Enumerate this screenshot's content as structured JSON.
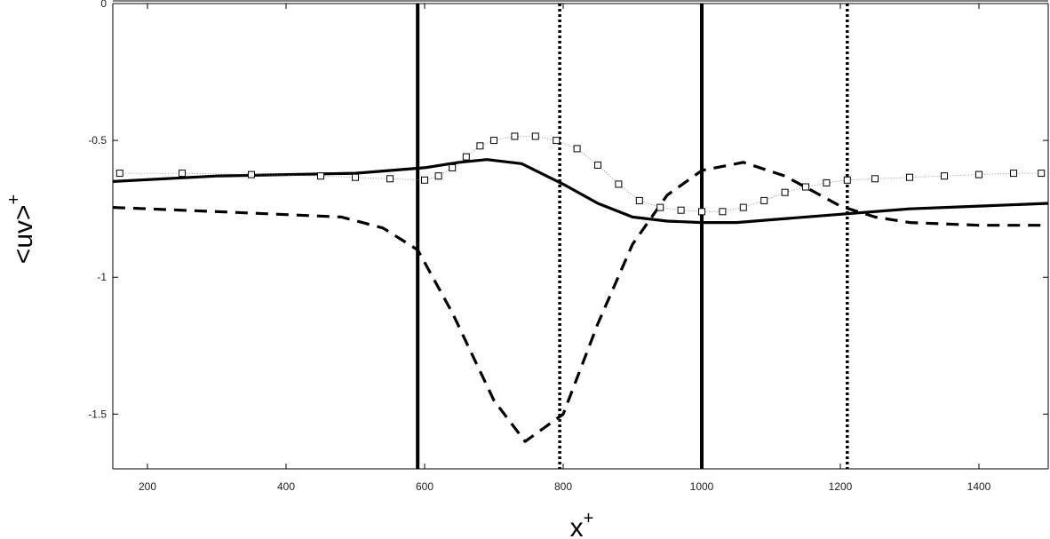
{
  "chart_data": {
    "type": "line",
    "xlabel": "x",
    "xlabel_sup": "+",
    "ylabel": "<uv>",
    "ylabel_sup": "+",
    "xlim": [
      150,
      1500
    ],
    "ylim": [
      -1.7,
      0
    ],
    "x_ticks": [
      200,
      400,
      600,
      800,
      1000,
      1200,
      1400
    ],
    "y_ticks": [
      0,
      -0.5,
      -1,
      -1.5
    ],
    "x_tick_labels": [
      "200",
      "400",
      "600",
      "800",
      "1000",
      "1200",
      "1400"
    ],
    "y_tick_labels": [
      "0",
      "-0.5",
      "-1",
      "-1.5"
    ],
    "grid": false,
    "vertical_lines": [
      {
        "x": 590,
        "style": "solid"
      },
      {
        "x": 795,
        "style": "dotted"
      },
      {
        "x": 1000,
        "style": "solid"
      },
      {
        "x": 1210,
        "style": "dotted"
      }
    ],
    "series": [
      {
        "style": "solid",
        "color": "#000000",
        "x": [
          150,
          300,
          500,
          600,
          650,
          690,
          740,
          800,
          850,
          900,
          950,
          1000,
          1050,
          1100,
          1200,
          1300,
          1400,
          1500
        ],
        "y": [
          -0.65,
          -0.63,
          -0.62,
          -0.6,
          -0.58,
          -0.57,
          -0.585,
          -0.66,
          -0.73,
          -0.78,
          -0.795,
          -0.8,
          -0.8,
          -0.79,
          -0.77,
          -0.75,
          -0.74,
          -0.73
        ]
      },
      {
        "style": "dashed",
        "color": "#000000",
        "x": [
          150,
          300,
          480,
          540,
          590,
          640,
          700,
          745,
          800,
          850,
          900,
          950,
          1000,
          1060,
          1120,
          1200,
          1250,
          1300,
          1400,
          1500
        ],
        "y": [
          -0.745,
          -0.76,
          -0.78,
          -0.82,
          -0.9,
          -1.13,
          -1.45,
          -1.6,
          -1.5,
          -1.17,
          -0.88,
          -0.7,
          -0.61,
          -0.58,
          -0.63,
          -0.74,
          -0.78,
          -0.8,
          -0.81,
          -0.81
        ]
      },
      {
        "style": "square-markers",
        "color": "#000000",
        "x": [
          160,
          250,
          350,
          450,
          500,
          550,
          600,
          620,
          640,
          660,
          680,
          700,
          730,
          760,
          790,
          820,
          850,
          880,
          910,
          940,
          970,
          1000,
          1030,
          1060,
          1090,
          1120,
          1150,
          1180,
          1210,
          1250,
          1300,
          1350,
          1400,
          1450,
          1490
        ],
        "y": [
          -0.62,
          -0.62,
          -0.625,
          -0.63,
          -0.635,
          -0.64,
          -0.645,
          -0.63,
          -0.6,
          -0.56,
          -0.52,
          -0.5,
          -0.485,
          -0.485,
          -0.5,
          -0.53,
          -0.59,
          -0.66,
          -0.72,
          -0.745,
          -0.755,
          -0.76,
          -0.76,
          -0.745,
          -0.72,
          -0.69,
          -0.67,
          -0.655,
          -0.645,
          -0.64,
          -0.635,
          -0.63,
          -0.625,
          -0.62,
          -0.62
        ]
      }
    ]
  }
}
